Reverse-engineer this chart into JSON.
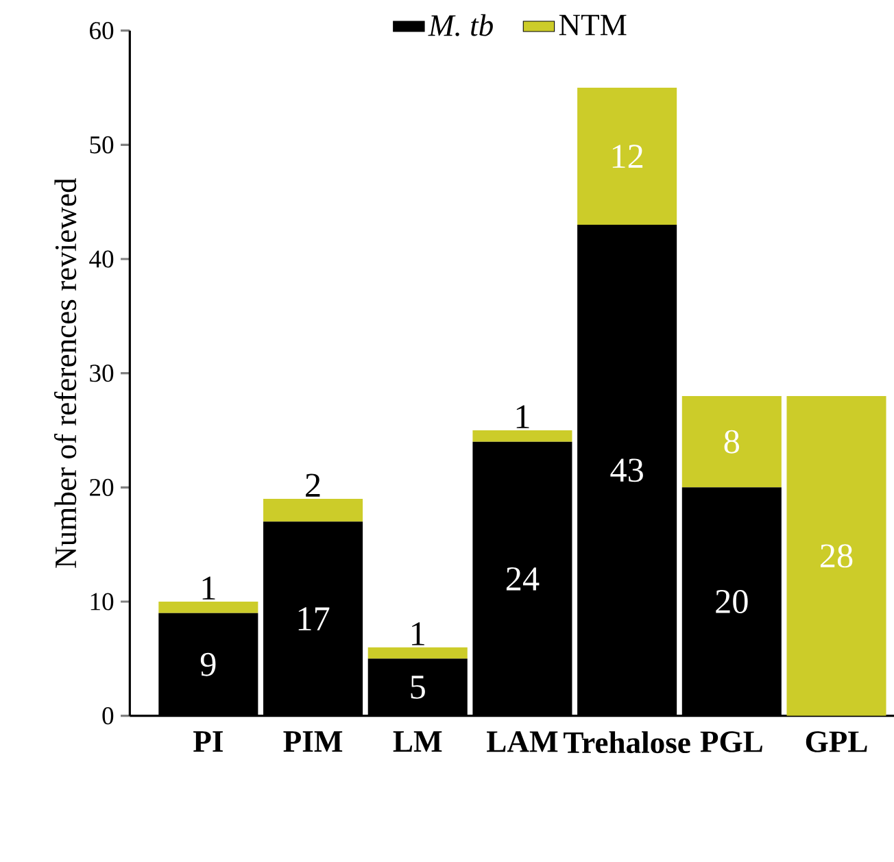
{
  "chart_data": {
    "type": "bar",
    "stacked": true,
    "ylabel": "Number of references reviewed",
    "categories": [
      "PI",
      "PIM",
      "LM",
      "LAM",
      "Trehalose",
      "PGL",
      "GPL"
    ],
    "series": [
      {
        "name": "M. tb",
        "color": "#000000",
        "values": [
          9,
          17,
          5,
          24,
          43,
          20,
          0
        ],
        "value_labels": [
          "9",
          "17",
          "5",
          "24",
          "43",
          "20",
          null
        ]
      },
      {
        "name": "NTM",
        "color": "#cccc29",
        "values": [
          1,
          2,
          1,
          1,
          12,
          8,
          28
        ],
        "value_labels": [
          "1",
          "2",
          "1",
          "1",
          "12",
          "8",
          "28"
        ]
      }
    ],
    "ylim": [
      0,
      60
    ],
    "yticks": [
      0,
      10,
      20,
      30,
      40,
      50,
      60
    ],
    "grid": false,
    "legend": "top"
  }
}
